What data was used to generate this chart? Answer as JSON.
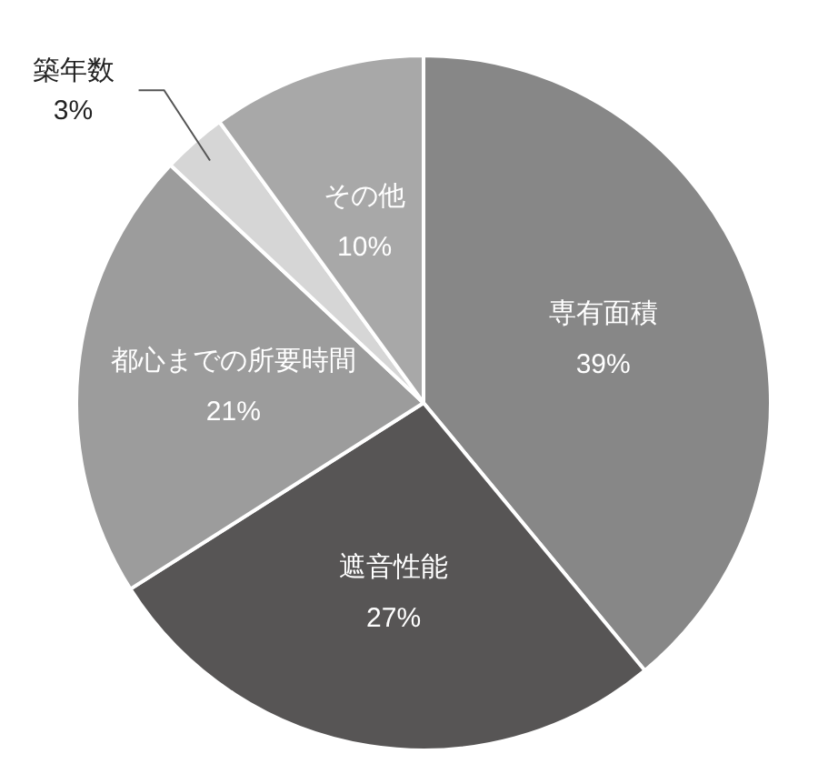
{
  "chart_data": {
    "type": "pie",
    "categories": [
      "専有面積",
      "遮音性能",
      "都心までの所要時間",
      "築年数",
      "その他"
    ],
    "values": [
      39,
      27,
      21,
      3,
      10
    ],
    "colors": [
      "#878787",
      "#575555",
      "#9c9c9c",
      "#d6d6d6",
      "#a8a8a8"
    ],
    "value_labels": [
      "39%",
      "27%",
      "21%",
      "3%",
      "10%"
    ],
    "legend": false
  }
}
